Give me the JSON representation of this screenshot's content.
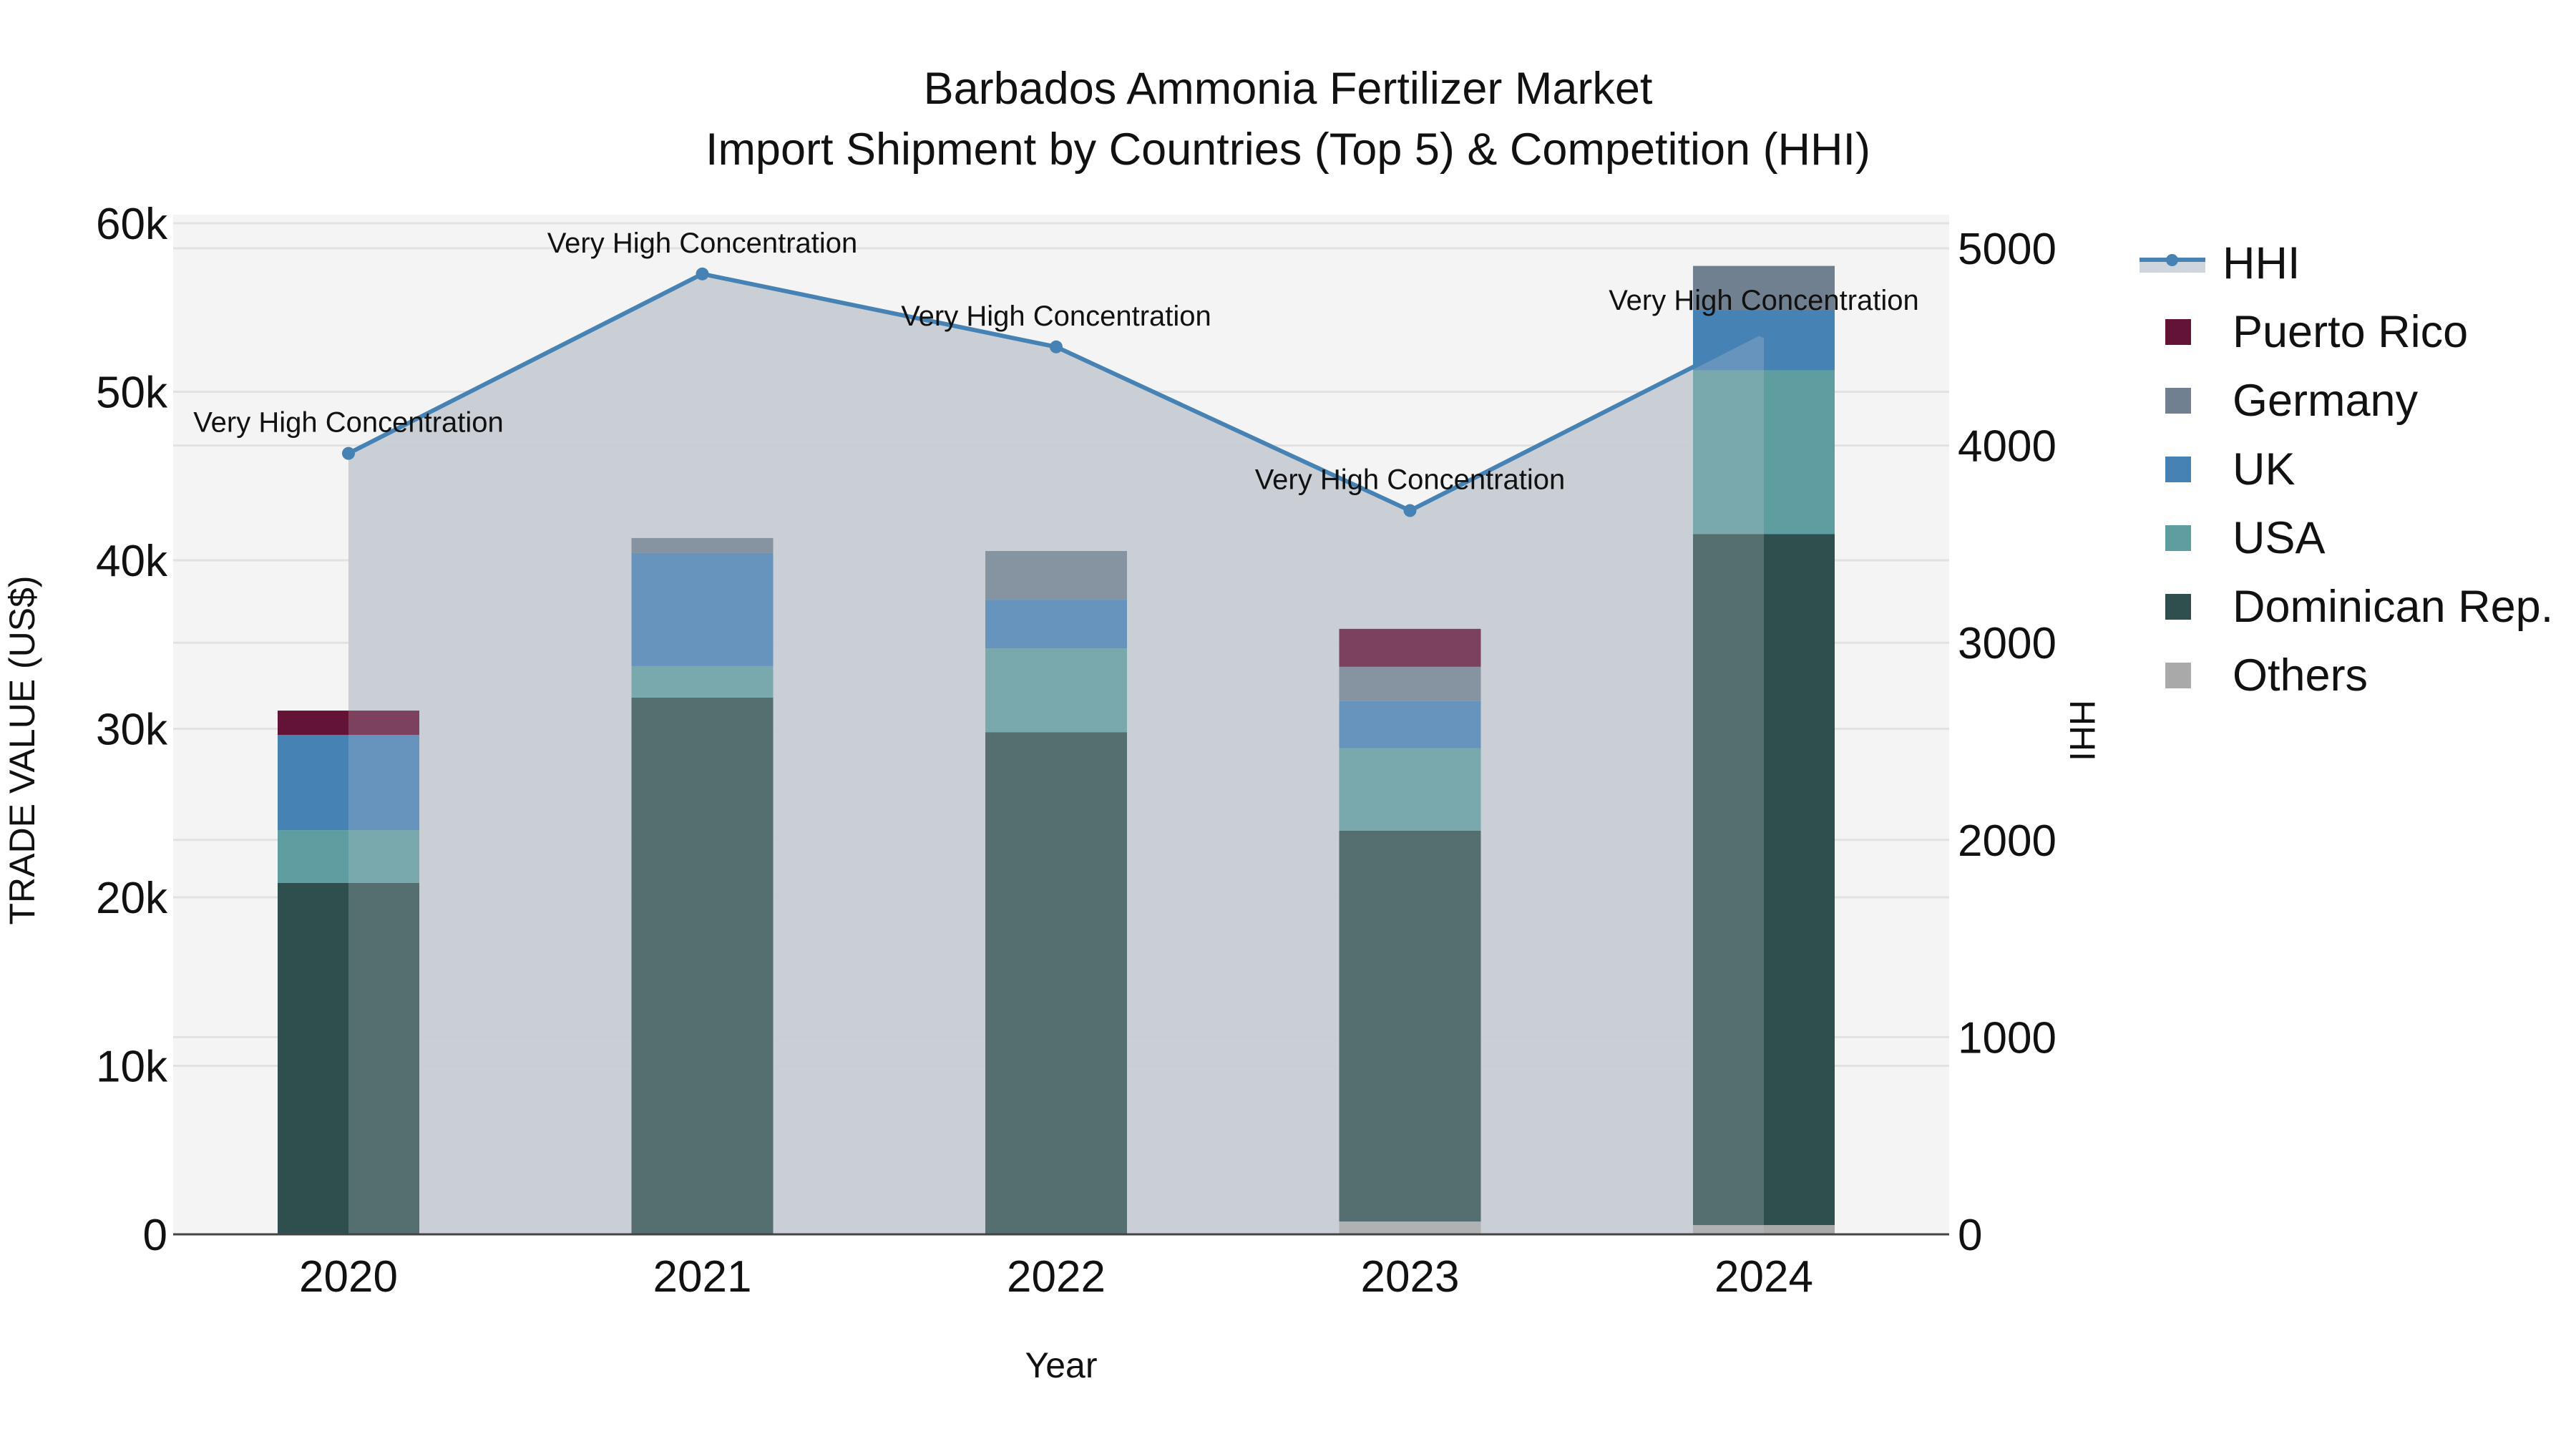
{
  "title": {
    "line1": "Barbados Ammonia Fertilizer Market",
    "line2": "Import Shipment by Countries (Top 5) & Competition (HHI)"
  },
  "axes": {
    "x_title": "Year",
    "y_left_title": "TRADE VALUE (US$)",
    "y_right_title": "HHI",
    "y_left_ticks": [
      "0",
      "10k",
      "20k",
      "30k",
      "40k",
      "50k",
      "60k"
    ],
    "y_right_ticks": [
      "0",
      "1000",
      "2000",
      "3000",
      "4000",
      "5000"
    ]
  },
  "legend": {
    "items": [
      {
        "label": "HHI",
        "type": "line",
        "color": "#4682b4"
      },
      {
        "label": "Puerto Rico",
        "type": "bar",
        "color": "#631336"
      },
      {
        "label": "Germany",
        "type": "bar",
        "color": "#708090"
      },
      {
        "label": "UK",
        "type": "bar",
        "color": "#4682b4"
      },
      {
        "label": "USA",
        "type": "bar",
        "color": "#5f9ea0"
      },
      {
        "label": "Dominican Rep.",
        "type": "bar",
        "color": "#2f4f4f"
      },
      {
        "label": "Others",
        "type": "bar",
        "color": "#a9a9a9"
      }
    ]
  },
  "colors": {
    "plot_bg": "#f4f4f4",
    "grid": "#e2e2e2",
    "hhi_line": "#4682b4",
    "hhi_fill": "#c8cdd5",
    "axis_line": "#444444"
  },
  "chart_data": {
    "type": "bar",
    "title": "Barbados Ammonia Fertilizer Market — Import Shipment by Countries (Top 5) & Competition (HHI)",
    "xlabel": "Year",
    "ylabel": "TRADE VALUE (US$)",
    "y2label": "HHI",
    "categories": [
      "2020",
      "2021",
      "2022",
      "2023",
      "2024"
    ],
    "ylim": [
      0,
      60000
    ],
    "y2lim": [
      0,
      5000
    ],
    "stacked": true,
    "grid": true,
    "legend_position": "right",
    "series": [
      {
        "name": "Others",
        "color": "#a9a9a9",
        "values": [
          0,
          0,
          0,
          760,
          550
        ]
      },
      {
        "name": "Dominican Rep.",
        "color": "#2f4f4f",
        "values": [
          20850,
          31850,
          29800,
          23200,
          41000
        ]
      },
      {
        "name": "USA",
        "color": "#5f9ea0",
        "values": [
          3140,
          1870,
          4970,
          4880,
          9720
        ]
      },
      {
        "name": "UK",
        "color": "#4682b4",
        "values": [
          5650,
          6710,
          2890,
          2800,
          3570
        ]
      },
      {
        "name": "Germany",
        "color": "#708090",
        "values": [
          0,
          890,
          2890,
          2040,
          2630
        ]
      },
      {
        "name": "Puerto Rico",
        "color": "#631336",
        "values": [
          1440,
          0,
          0,
          2250,
          0
        ]
      }
    ],
    "line_series": {
      "name": "HHI",
      "axis": "right",
      "color": "#4682b4",
      "values": [
        3960,
        4870,
        4500,
        3670,
        4580
      ],
      "annotations": [
        "Very High Concentration",
        "Very High Concentration",
        "Very High Concentration",
        "Very High Concentration",
        "Very High Concentration"
      ]
    }
  }
}
